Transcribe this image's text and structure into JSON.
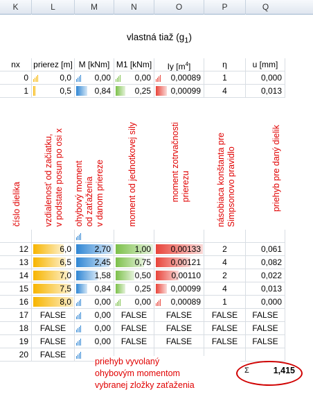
{
  "columns": [
    "K",
    "L",
    "M",
    "N",
    "O",
    "P",
    "Q"
  ],
  "title": "vlastná tiaž (g",
  "title_sub": "1",
  "title_end": ")",
  "headers": {
    "nx": "nx",
    "prierez": "prierez [m]",
    "M": "M [kNm]",
    "M1": "M1 [kNm]",
    "Iy": "Iy [m",
    "Iy_sup": "4",
    "Iy_end": "]",
    "eta": "η",
    "u": "u [mm]"
  },
  "rows_top": [
    {
      "nx": "0",
      "x": "0,0",
      "M": "0,00",
      "M1": "0,00",
      "Iy": "0,00089",
      "eta": "1",
      "u": "0,000"
    },
    {
      "nx": "1",
      "x": "0,5",
      "M": "0,84",
      "M1": "0,25",
      "Iy": "0,00099",
      "eta": "4",
      "u": "0,013"
    }
  ],
  "rows_bottom": [
    {
      "nx": "12",
      "x": "6,0",
      "M": "2,70",
      "M1": "1,00",
      "Iy": "0,00133",
      "eta": "2",
      "u": "0,061"
    },
    {
      "nx": "13",
      "x": "6,5",
      "M": "2,45",
      "M1": "0,75",
      "Iy": "0,00121",
      "eta": "4",
      "u": "0,082"
    },
    {
      "nx": "14",
      "x": "7,0",
      "M": "1,58",
      "M1": "0,50",
      "Iy": "0,00110",
      "eta": "2",
      "u": "0,022"
    },
    {
      "nx": "15",
      "x": "7,5",
      "M": "0,84",
      "M1": "0,25",
      "Iy": "0,00099",
      "eta": "4",
      "u": "0,013"
    },
    {
      "nx": "16",
      "x": "8,0",
      "M": "0,00",
      "M1": "0,00",
      "Iy": "0,00089",
      "eta": "1",
      "u": "0,000"
    }
  ],
  "bar_levels": {
    "x_fraction_of_max": [
      0.0,
      0.0625,
      0.75,
      0.8125,
      0.875,
      0.9375,
      1.0
    ],
    "M_fraction_of_max": [
      0.0,
      0.31,
      1.0,
      0.91,
      0.585,
      0.31,
      0.0
    ],
    "M1_fraction_of_max": [
      0.0,
      0.25,
      1.0,
      0.75,
      0.5,
      0.25,
      0.0
    ],
    "Iy_fraction_of_max": [
      0.0,
      0.23,
      1.0,
      0.73,
      0.48,
      0.23,
      0.0
    ]
  },
  "rows_false": [
    {
      "nx": "17",
      "x": "FALSE",
      "M": "0,00",
      "M1": "FALSE",
      "Iy": "FALSE",
      "eta": "FALSE",
      "u": "FALSE"
    },
    {
      "nx": "18",
      "x": "FALSE",
      "M": "0,00",
      "M1": "FALSE",
      "Iy": "FALSE",
      "eta": "FALSE",
      "u": "FALSE"
    },
    {
      "nx": "19",
      "x": "FALSE",
      "M": "0,00",
      "M1": "FALSE",
      "Iy": "FALSE",
      "eta": "FALSE",
      "u": "FALSE"
    },
    {
      "nx": "20",
      "x": "FALSE",
      "M": "",
      "M1": "",
      "Iy": "",
      "eta": "",
      "u": ""
    }
  ],
  "annotations": {
    "nx": "číslo dielika",
    "x_line1": "vzdialenosť od začiatku,",
    "x_line2": "v podstate posun po osi x",
    "M_line1": "ohybový moment",
    "M_line2": "od zaťaženia",
    "M_line3": "v danom priereze",
    "M1": "moment od jednotkovej sily",
    "Iy_line1": "moment zotrvačnosti",
    "Iy_line2": "prierezu",
    "eta_line1": "násobiaca konštanta pre",
    "eta_line2": "Simpsonovo pravidlo",
    "u": "priehyb pre daný dielik"
  },
  "note": {
    "line1": "priehyb vyvolaný",
    "line2": "ohybovým momentom",
    "line3": "vybranej zložky zaťaženia"
  },
  "sum_symbol": "Σ",
  "total_u": "1,415",
  "colors": {
    "bar_orange": "#f7b500",
    "bar_blue": "#2f86d4",
    "bar_green": "#7cc04a",
    "bar_red": "#e8443a",
    "annotation_red": "#e00000"
  }
}
